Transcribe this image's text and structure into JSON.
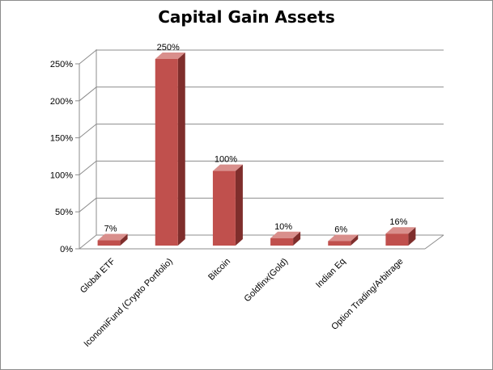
{
  "chart_data": {
    "type": "bar",
    "title": "Capital Gain Assets",
    "categories": [
      "Global ETF",
      "IconomiFund (Crypto Portfolio)",
      "Bitcoin",
      "Goldfinx(Gold)",
      "Indian Eq",
      "Option Trading/Arbitrage"
    ],
    "values": [
      7,
      250,
      100,
      10,
      6,
      16
    ],
    "data_labels": [
      "7%",
      "250%",
      "100%",
      "10%",
      "6%",
      "16%"
    ],
    "yticks": [
      "0%",
      "50%",
      "100%",
      "150%",
      "200%",
      "250%"
    ],
    "ylim": [
      0,
      250
    ],
    "grid": true,
    "legend": "none",
    "bar_color": "#c0504d",
    "bar_side_color": "#7f2e2c",
    "bar_top_color": "#d98f8c"
  }
}
